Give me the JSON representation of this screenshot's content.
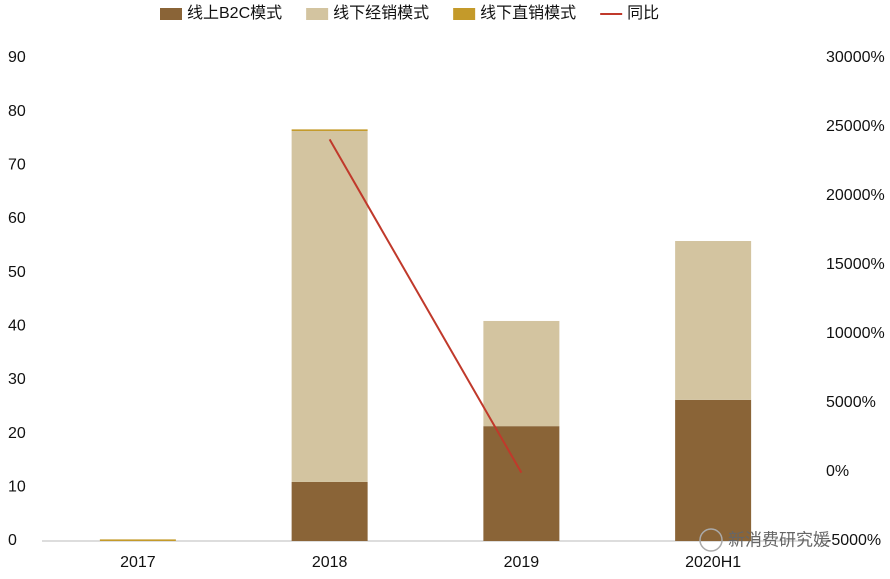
{
  "chart_data": {
    "type": "bar",
    "stacked": true,
    "categories": [
      "2017",
      "2018",
      "2019",
      "2020H1"
    ],
    "series": [
      {
        "name": "线上B2C模式",
        "color": "#8a6437",
        "values": [
          0,
          11,
          21.4,
          26.3
        ]
      },
      {
        "name": "线下经销模式",
        "color": "#d3c4a0",
        "values": [
          0,
          65.4,
          19.6,
          29.6
        ]
      },
      {
        "name": "线下直销模式",
        "color": "#c49a2a",
        "values": [
          0.3,
          0.3,
          0,
          0
        ]
      },
      {
        "name": "同比",
        "type": "line",
        "axis": "y2",
        "color": "#c0392b",
        "values": [
          null,
          24100,
          -46,
          null
        ]
      }
    ],
    "ylim": [
      0,
      90
    ],
    "yticks": [
      0,
      10,
      20,
      30,
      40,
      50,
      60,
      70,
      80,
      90
    ],
    "y2lim": [
      -5000,
      30000
    ],
    "y2ticks": [
      {
        "value": -5000,
        "label": "-5000%"
      },
      {
        "value": 0,
        "label": "0%"
      },
      {
        "value": 5000,
        "label": "5000%"
      },
      {
        "value": 10000,
        "label": "10000%"
      },
      {
        "value": 15000,
        "label": "15000%"
      },
      {
        "value": 20000,
        "label": "20000%"
      },
      {
        "value": 25000,
        "label": "25000%"
      },
      {
        "value": 30000,
        "label": "30000%"
      }
    ],
    "legend_position": "top",
    "watermark": "新消费研究媛"
  }
}
